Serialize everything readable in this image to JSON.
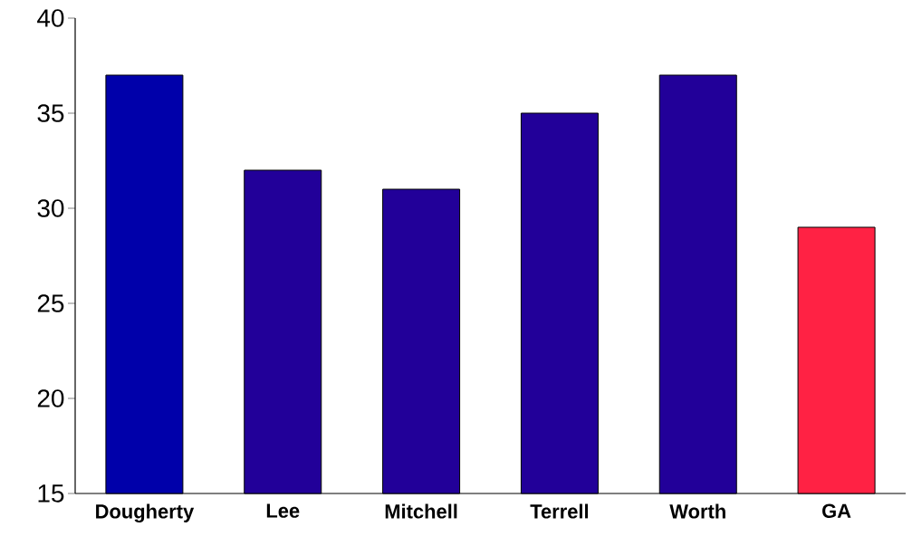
{
  "chart_data": {
    "type": "bar",
    "categories": [
      "Dougherty",
      "Lee",
      "Mitchell",
      "Terrell",
      "Worth",
      "GA"
    ],
    "values": [
      37,
      32,
      31,
      35,
      37,
      29
    ],
    "colors": [
      "#0000aa",
      "#220099",
      "#220099",
      "#220099",
      "#220099",
      "#ff2244"
    ],
    "ylim": [
      15,
      40
    ],
    "yticks": [
      15,
      20,
      25,
      30,
      35,
      40
    ]
  }
}
